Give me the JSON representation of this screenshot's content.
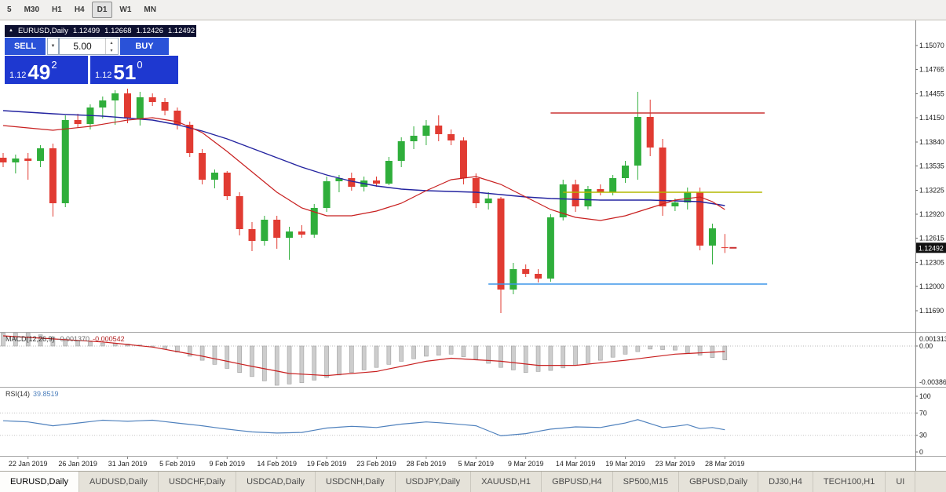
{
  "colors": {
    "candle_up": "#2fae3b",
    "candle_down": "#e13b32",
    "ma_fast": "#c82020",
    "ma_slow": "#2424a0",
    "macd_hist_fill": "#cdcdcd",
    "macd_hist_stroke": "#9e9e9e",
    "macd_signal": "#c82020",
    "rsi_line": "#4f81bd",
    "axis_text": "#1a1a1a",
    "badge_bg": "#111111",
    "badge_text": "#ffffff",
    "trade_button_blue": "#2a52d8",
    "trade_price_blue": "#1e38d0",
    "panel_header_bg": "#0d1030"
  },
  "toolbar": {
    "timeframes": [
      {
        "label": "5",
        "active": false
      },
      {
        "label": "M30",
        "active": false
      },
      {
        "label": "H1",
        "active": false
      },
      {
        "label": "H4",
        "active": false
      },
      {
        "label": "D1",
        "active": true
      },
      {
        "label": "W1",
        "active": false
      },
      {
        "label": "MN",
        "active": false
      }
    ]
  },
  "chart_header": {
    "collapse_icon": "▲",
    "symbol": "EURUSD,Daily",
    "open": "1.12499",
    "high": "1.12668",
    "low": "1.12426",
    "close": "1.12492"
  },
  "trade_panel": {
    "sell_label": "SELL",
    "buy_label": "BUY",
    "volume": "5.00",
    "bid": {
      "prefix": "1.12",
      "big": "49",
      "sup": "2"
    },
    "ask": {
      "prefix": "1.12",
      "big": "51",
      "sup": "0"
    }
  },
  "price_axis": {
    "labels": [
      "1.15070",
      "1.14765",
      "1.14455",
      "1.14150",
      "1.13840",
      "1.13535",
      "1.13225",
      "1.12920",
      "1.12615",
      "1.12305",
      "1.12000",
      "1.11690"
    ],
    "current_price": "1.12492"
  },
  "indicators": {
    "macd": {
      "label": "MACD(12,26,9)",
      "value1": "-0.001370",
      "value2": "-0.000542",
      "scale_max": "0.001313",
      "scale_zero": "0.00",
      "scale_min": "-0.00386"
    },
    "rsi": {
      "label": "RSI(14)",
      "value": "39.8519",
      "scale_labels": [
        "100",
        "70",
        "30",
        "0"
      ]
    }
  },
  "tabs": [
    {
      "label": "EURUSD,Daily",
      "active": true
    },
    {
      "label": "AUDUSD,Daily",
      "active": false
    },
    {
      "label": "USDCHF,Daily",
      "active": false
    },
    {
      "label": "USDCAD,Daily",
      "active": false
    },
    {
      "label": "USDCNH,Daily",
      "active": false
    },
    {
      "label": "USDJPY,Daily",
      "active": false
    },
    {
      "label": "XAUUSD,H1",
      "active": false
    },
    {
      "label": "GBPUSD,H4",
      "active": false
    },
    {
      "label": "SP500,M15",
      "active": false
    },
    {
      "label": "GBPUSD,Daily",
      "active": false
    },
    {
      "label": "DJ30,H4",
      "active": false
    },
    {
      "label": "TECH100,H1",
      "active": false
    },
    {
      "label": "UI",
      "active": false
    }
  ],
  "chart_data": {
    "type": "candlestick",
    "symbol": "EURUSD",
    "timeframe": "Daily",
    "price_range": {
      "top": 1.1539,
      "bottom": 1.1142
    },
    "bars": [
      [
        1.1364,
        1.137,
        1.1352,
        1.1358
      ],
      [
        1.1358,
        1.1368,
        1.1344,
        1.1363
      ],
      [
        1.1363,
        1.137,
        1.1336,
        1.136
      ],
      [
        1.136,
        1.138,
        1.1352,
        1.1376
      ],
      [
        1.1376,
        1.1382,
        1.1289,
        1.1306
      ],
      [
        1.1306,
        1.1418,
        1.1301,
        1.1412
      ],
      [
        1.1412,
        1.142,
        1.1402,
        1.1407
      ],
      [
        1.1407,
        1.1432,
        1.14,
        1.1428
      ],
      [
        1.1428,
        1.1442,
        1.1414,
        1.1437
      ],
      [
        1.1437,
        1.145,
        1.1406,
        1.1446
      ],
      [
        1.1446,
        1.1452,
        1.1408,
        1.1414
      ],
      [
        1.1414,
        1.1448,
        1.1405,
        1.1441
      ],
      [
        1.1441,
        1.1446,
        1.143,
        1.1435
      ],
      [
        1.1435,
        1.144,
        1.1418,
        1.1424
      ],
      [
        1.1424,
        1.1428,
        1.14,
        1.1406
      ],
      [
        1.1406,
        1.141,
        1.1365,
        1.137
      ],
      [
        1.137,
        1.1375,
        1.133,
        1.1336
      ],
      [
        1.1336,
        1.1349,
        1.1325,
        1.1345
      ],
      [
        1.1345,
        1.1347,
        1.131,
        1.1315
      ],
      [
        1.1315,
        1.132,
        1.1265,
        1.1273
      ],
      [
        1.1273,
        1.1282,
        1.1245,
        1.1258
      ],
      [
        1.1258,
        1.129,
        1.1252,
        1.1285
      ],
      [
        1.1285,
        1.129,
        1.1248,
        1.1262
      ],
      [
        1.1262,
        1.1276,
        1.1234,
        1.127
      ],
      [
        1.127,
        1.1278,
        1.1262,
        1.1266
      ],
      [
        1.1266,
        1.1305,
        1.1262,
        1.13
      ],
      [
        1.13,
        1.134,
        1.1295,
        1.1334
      ],
      [
        1.1334,
        1.1342,
        1.132,
        1.1338
      ],
      [
        1.1338,
        1.1345,
        1.1322,
        1.1327
      ],
      [
        1.1327,
        1.134,
        1.1321,
        1.1335
      ],
      [
        1.1335,
        1.134,
        1.1327,
        1.1331
      ],
      [
        1.1331,
        1.1365,
        1.1329,
        1.136
      ],
      [
        1.136,
        1.139,
        1.1352,
        1.1385
      ],
      [
        1.1385,
        1.1404,
        1.1375,
        1.1392
      ],
      [
        1.1392,
        1.1412,
        1.138,
        1.1405
      ],
      [
        1.1405,
        1.1418,
        1.1385,
        1.1394
      ],
      [
        1.1394,
        1.14,
        1.138,
        1.1386
      ],
      [
        1.1386,
        1.139,
        1.133,
        1.1338
      ],
      [
        1.1338,
        1.1344,
        1.13,
        1.1306
      ],
      [
        1.1306,
        1.132,
        1.1298,
        1.1312
      ],
      [
        1.1312,
        1.1314,
        1.1166,
        1.1196
      ],
      [
        1.1196,
        1.123,
        1.119,
        1.1222
      ],
      [
        1.1222,
        1.1228,
        1.1212,
        1.1216
      ],
      [
        1.1216,
        1.1222,
        1.1205,
        1.121
      ],
      [
        1.121,
        1.1292,
        1.1206,
        1.1288
      ],
      [
        1.1288,
        1.1336,
        1.1284,
        1.133
      ],
      [
        1.133,
        1.1336,
        1.1295,
        1.1302
      ],
      [
        1.1302,
        1.1328,
        1.1298,
        1.1324
      ],
      [
        1.1324,
        1.133,
        1.1316,
        1.132
      ],
      [
        1.132,
        1.1342,
        1.1316,
        1.1338
      ],
      [
        1.1338,
        1.136,
        1.1332,
        1.1354
      ],
      [
        1.1354,
        1.1448,
        1.1336,
        1.1416
      ],
      [
        1.1416,
        1.1438,
        1.1366,
        1.1377
      ],
      [
        1.1377,
        1.1388,
        1.129,
        1.1302
      ],
      [
        1.1302,
        1.1312,
        1.1296,
        1.1307
      ],
      [
        1.1307,
        1.1326,
        1.1298,
        1.132
      ],
      [
        1.132,
        1.1326,
        1.1246,
        1.1252
      ],
      [
        1.1252,
        1.128,
        1.1228,
        1.1274
      ],
      [
        1.12499,
        1.12668,
        1.12426,
        1.12492
      ]
    ],
    "x_labels": [
      {
        "i": 2,
        "label": "22 Jan 2019"
      },
      {
        "i": 6,
        "label": "26 Jan 2019"
      },
      {
        "i": 10,
        "label": "31 Jan 2019"
      },
      {
        "i": 14,
        "label": "5 Feb 2019"
      },
      {
        "i": 18,
        "label": "9 Feb 2019"
      },
      {
        "i": 22,
        "label": "14 Feb 2019"
      },
      {
        "i": 26,
        "label": "19 Feb 2019"
      },
      {
        "i": 30,
        "label": "23 Feb 2019"
      },
      {
        "i": 34,
        "label": "28 Feb 2019"
      },
      {
        "i": 38,
        "label": "5 Mar 2019"
      },
      {
        "i": 42,
        "label": "9 Mar 2019"
      },
      {
        "i": 46,
        "label": "14 Mar 2019"
      },
      {
        "i": 50,
        "label": "19 Mar 2019"
      },
      {
        "i": 54,
        "label": "23 Mar 2019"
      },
      {
        "i": 58,
        "label": "28 Mar 2019"
      }
    ],
    "ma_fast_keyframes": [
      [
        0,
        1.1405
      ],
      [
        4,
        1.1399
      ],
      [
        7,
        1.1404
      ],
      [
        10,
        1.1412
      ],
      [
        12,
        1.1415
      ],
      [
        14,
        1.141
      ],
      [
        16,
        1.1396
      ],
      [
        18,
        1.1372
      ],
      [
        20,
        1.1346
      ],
      [
        22,
        1.132
      ],
      [
        24,
        1.13
      ],
      [
        26,
        1.129
      ],
      [
        28,
        1.129
      ],
      [
        30,
        1.1296
      ],
      [
        32,
        1.1306
      ],
      [
        34,
        1.1322
      ],
      [
        36,
        1.1336
      ],
      [
        38,
        1.134
      ],
      [
        40,
        1.133
      ],
      [
        42,
        1.1314
      ],
      [
        44,
        1.1298
      ],
      [
        46,
        1.1288
      ],
      [
        48,
        1.1284
      ],
      [
        50,
        1.129
      ],
      [
        52,
        1.13
      ],
      [
        54,
        1.131
      ],
      [
        56,
        1.1314
      ],
      [
        57,
        1.1308
      ],
      [
        58,
        1.1298
      ]
    ],
    "ma_slow_keyframes": [
      [
        0,
        1.1424
      ],
      [
        4,
        1.142
      ],
      [
        8,
        1.1417
      ],
      [
        12,
        1.1412
      ],
      [
        14,
        1.1406
      ],
      [
        16,
        1.1398
      ],
      [
        18,
        1.1388
      ],
      [
        20,
        1.1376
      ],
      [
        22,
        1.1364
      ],
      [
        24,
        1.1352
      ],
      [
        26,
        1.1342
      ],
      [
        28,
        1.1334
      ],
      [
        30,
        1.1328
      ],
      [
        32,
        1.1324
      ],
      [
        34,
        1.1322
      ],
      [
        36,
        1.1321
      ],
      [
        38,
        1.132
      ],
      [
        40,
        1.1317
      ],
      [
        42,
        1.1314
      ],
      [
        44,
        1.1312
      ],
      [
        46,
        1.1311
      ],
      [
        48,
        1.131
      ],
      [
        50,
        1.131
      ],
      [
        52,
        1.131
      ],
      [
        54,
        1.1309
      ],
      [
        56,
        1.1308
      ],
      [
        58,
        1.1303
      ]
    ],
    "hlines": [
      {
        "price": 1.1421,
        "from": 44,
        "to": 61.2,
        "color": "#cc3333",
        "name": "resistance-line-red"
      },
      {
        "price": 1.132,
        "from": 45,
        "to": 61.0,
        "color": "#b3b800",
        "name": "trendline-olive"
      },
      {
        "price": 1.1203,
        "from": 39,
        "to": 61.4,
        "color": "#3d96e8",
        "name": "support-line-blue"
      }
    ],
    "macd": {
      "scale_max": 0.00131,
      "scale_min": -0.00386,
      "hist_keyframes": [
        [
          0,
          0.0013
        ],
        [
          2,
          0.00131
        ],
        [
          4,
          0.0009
        ],
        [
          6,
          0.0005
        ],
        [
          8,
          0.0003
        ],
        [
          10,
          0.0002
        ],
        [
          12,
          0.0
        ],
        [
          14,
          -0.0006
        ],
        [
          16,
          -0.0014
        ],
        [
          18,
          -0.0022
        ],
        [
          20,
          -0.003
        ],
        [
          22,
          -0.00386
        ],
        [
          24,
          -0.0036
        ],
        [
          26,
          -0.0031
        ],
        [
          28,
          -0.0026
        ],
        [
          30,
          -0.0021
        ],
        [
          32,
          -0.0015
        ],
        [
          34,
          -0.001
        ],
        [
          36,
          -0.0008
        ],
        [
          38,
          -0.0013
        ],
        [
          40,
          -0.0021
        ],
        [
          42,
          -0.0026
        ],
        [
          44,
          -0.0024
        ],
        [
          46,
          -0.0019
        ],
        [
          48,
          -0.0014
        ],
        [
          50,
          -0.0008
        ],
        [
          52,
          -0.0003
        ],
        [
          54,
          -0.0004
        ],
        [
          56,
          -0.0009
        ],
        [
          58,
          -0.00137
        ]
      ],
      "signal_keyframes": [
        [
          0,
          0.001
        ],
        [
          4,
          0.0007
        ],
        [
          8,
          0.0004
        ],
        [
          12,
          -0.0001
        ],
        [
          16,
          -0.001
        ],
        [
          20,
          -0.002
        ],
        [
          23,
          -0.0027
        ],
        [
          26,
          -0.0029
        ],
        [
          30,
          -0.0025
        ],
        [
          34,
          -0.0015
        ],
        [
          36,
          -0.0012
        ],
        [
          40,
          -0.0015
        ],
        [
          43,
          -0.0019
        ],
        [
          46,
          -0.0019
        ],
        [
          50,
          -0.0014
        ],
        [
          54,
          -0.0008
        ],
        [
          58,
          -0.00054
        ]
      ],
      "last_hist": -0.00137,
      "last_signal": -0.000542
    },
    "rsi": {
      "levels": [
        70,
        30
      ],
      "last": 39.8519,
      "keyframes": [
        [
          0,
          56
        ],
        [
          2,
          54
        ],
        [
          4,
          47
        ],
        [
          6,
          52
        ],
        [
          8,
          57
        ],
        [
          10,
          55
        ],
        [
          12,
          57
        ],
        [
          14,
          52
        ],
        [
          16,
          47
        ],
        [
          18,
          41
        ],
        [
          20,
          36
        ],
        [
          22,
          34
        ],
        [
          24,
          35
        ],
        [
          26,
          43
        ],
        [
          28,
          46
        ],
        [
          30,
          44
        ],
        [
          32,
          50
        ],
        [
          34,
          54
        ],
        [
          36,
          51
        ],
        [
          38,
          47
        ],
        [
          40,
          29
        ],
        [
          42,
          33
        ],
        [
          44,
          41
        ],
        [
          46,
          45
        ],
        [
          48,
          44
        ],
        [
          50,
          52
        ],
        [
          51,
          58
        ],
        [
          52,
          51
        ],
        [
          53,
          44
        ],
        [
          54,
          46
        ],
        [
          55,
          49
        ],
        [
          56,
          42
        ],
        [
          57,
          44
        ],
        [
          58,
          39.85
        ]
      ]
    },
    "last_close": 1.12492
  }
}
